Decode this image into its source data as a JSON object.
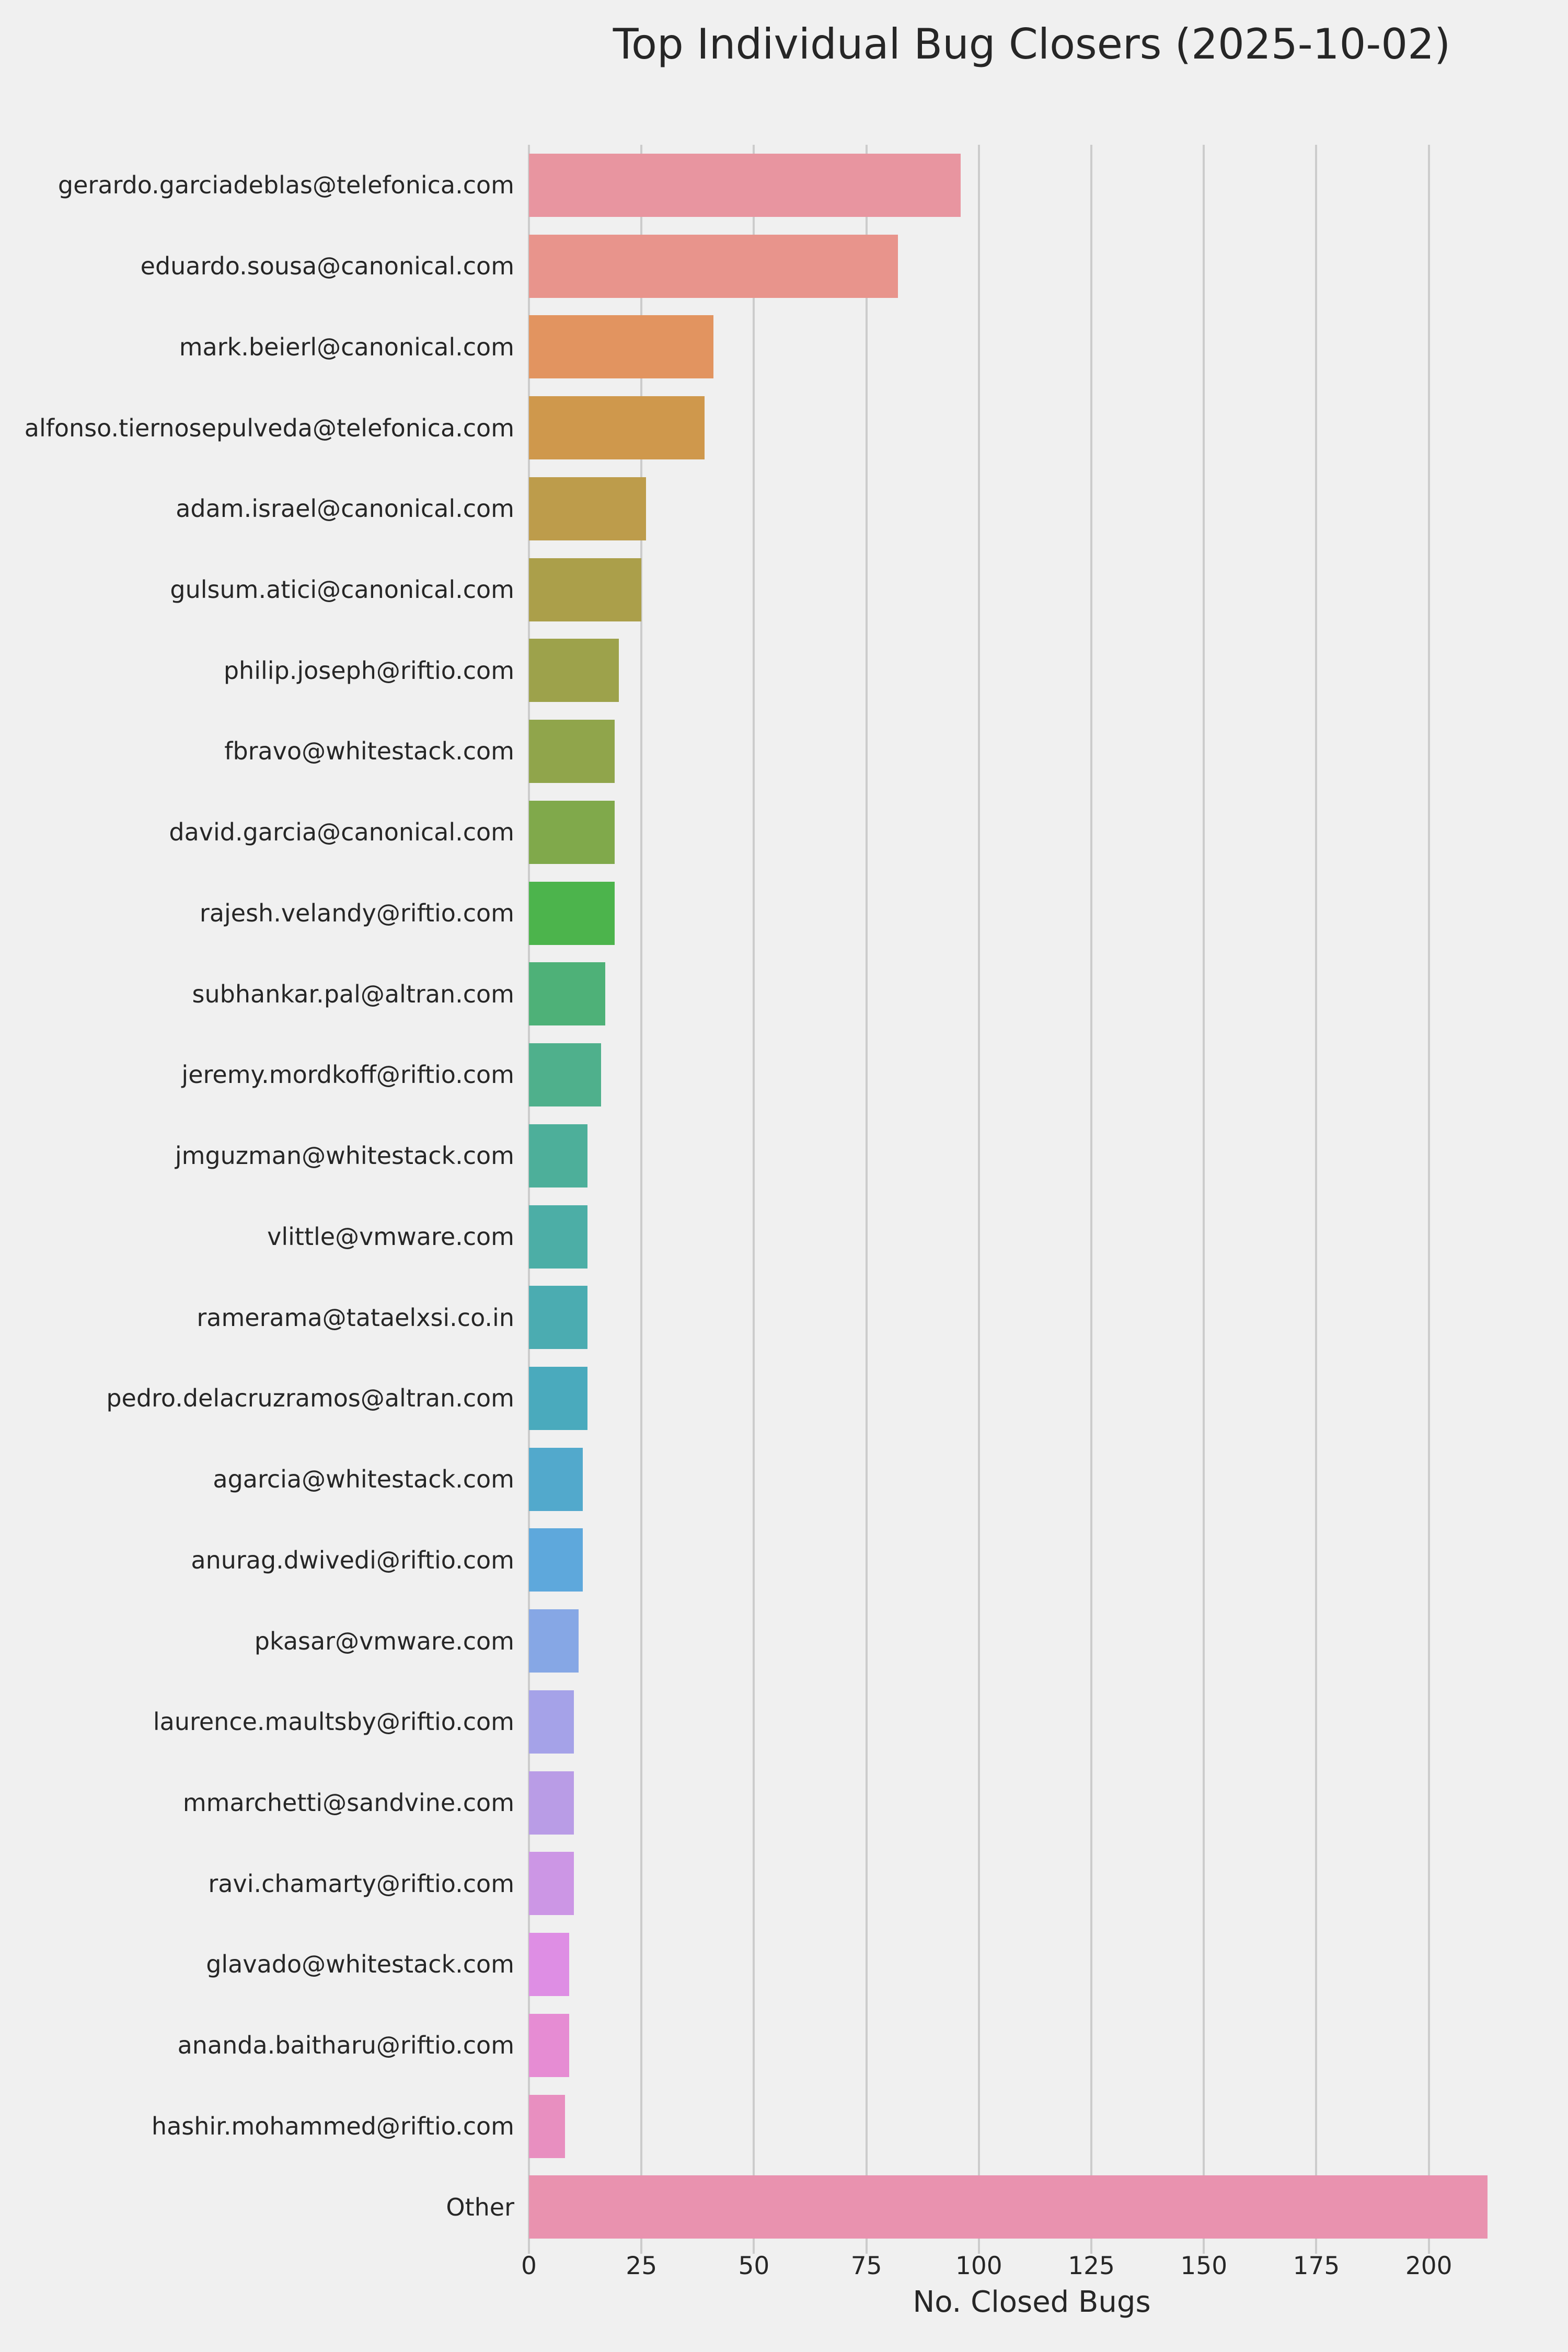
{
  "title": "Top Individual Bug Closers (2025-10-02)",
  "chart_data": {
    "type": "bar",
    "orientation": "horizontal",
    "title": "Top Individual Bug Closers (2025-10-02)",
    "xlabel": "No. Closed Bugs",
    "ylabel": "",
    "categories": [
      "gerardo.garciadeblas@telefonica.com",
      "eduardo.sousa@canonical.com",
      "mark.beierl@canonical.com",
      "alfonso.tiernosepulveda@telefonica.com",
      "adam.israel@canonical.com",
      "gulsum.atici@canonical.com",
      "philip.joseph@riftio.com",
      "fbravo@whitestack.com",
      "david.garcia@canonical.com",
      "rajesh.velandy@riftio.com",
      "subhankar.pal@altran.com",
      "jeremy.mordkoff@riftio.com",
      "jmguzman@whitestack.com",
      "vlittle@vmware.com",
      "ramerama@tataelxsi.co.in",
      "pedro.delacruzramos@altran.com",
      "agarcia@whitestack.com",
      "anurag.dwivedi@riftio.com",
      "pkasar@vmware.com",
      "laurence.maultsby@riftio.com",
      "mmarchetti@sandvine.com",
      "ravi.chamarty@riftio.com",
      "glavado@whitestack.com",
      "ananda.baitharu@riftio.com",
      "hashir.mohammed@riftio.com",
      "Other"
    ],
    "values": [
      96,
      82,
      41,
      39,
      26,
      25,
      20,
      19,
      19,
      19,
      17,
      16,
      13,
      13,
      13,
      13,
      12,
      12,
      11,
      10,
      10,
      10,
      9,
      9,
      8,
      213
    ],
    "bar_colors": [
      "#e895a0",
      "#e8948c",
      "#e29460",
      "#cf984c",
      "#bd9c4b",
      "#ab9f4a",
      "#9da24b",
      "#90a54b",
      "#80a94b",
      "#4cb44c",
      "#4eb178",
      "#4fb08c",
      "#4daf9a",
      "#4caea6",
      "#4bacb1",
      "#4aaabd",
      "#52a9cc",
      "#5ea8dc",
      "#86a7e5",
      "#a5a2e8",
      "#b99ce6",
      "#cc96e5",
      "#de8ee4",
      "#e68cd3",
      "#e88fc0",
      "#e992af"
    ],
    "xticks": [
      0,
      25,
      50,
      75,
      100,
      125,
      150,
      175,
      200
    ],
    "xlim": [
      0,
      223.5
    ],
    "grid": true,
    "legend": false,
    "background_color": "#f0f0f0",
    "gridline_color": "#cccccc",
    "text_color": "#262626"
  }
}
